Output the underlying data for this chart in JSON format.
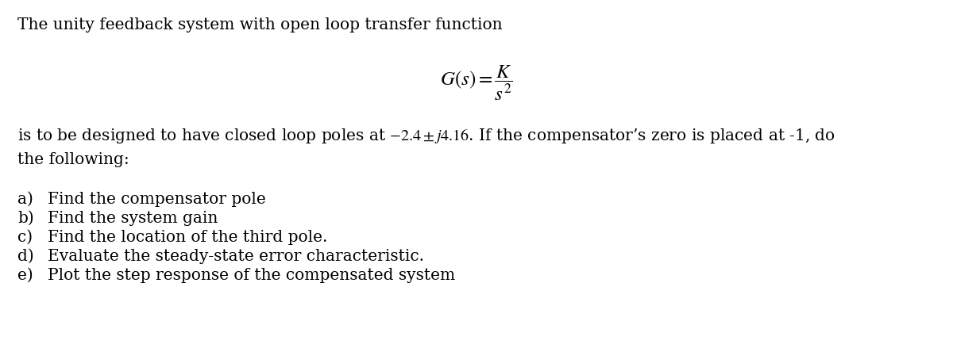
{
  "bg_color": "#ffffff",
  "text_color": "#000000",
  "line1": "The unity feedback system with open loop transfer function",
  "line3a": "is to be designed to have closed loop poles at $-2.4 \\pm j4.16$. If the compensator’s zero is placed at -1, do",
  "line3b": "the following:",
  "items": [
    [
      "a)",
      "Find the compensator pole"
    ],
    [
      "b)",
      "Find the system gain"
    ],
    [
      "c)",
      "Find the location of the third pole."
    ],
    [
      "d)",
      "Evaluate the steady-state error characteristic."
    ],
    [
      "e)",
      "Plot the step response of the compensated system"
    ]
  ],
  "formula": "$G(s) = \\dfrac{K}{s^2}$",
  "figsize": [
    12.0,
    4.35
  ],
  "dpi": 100,
  "base_fs": 14.5,
  "formula_fs": 18
}
